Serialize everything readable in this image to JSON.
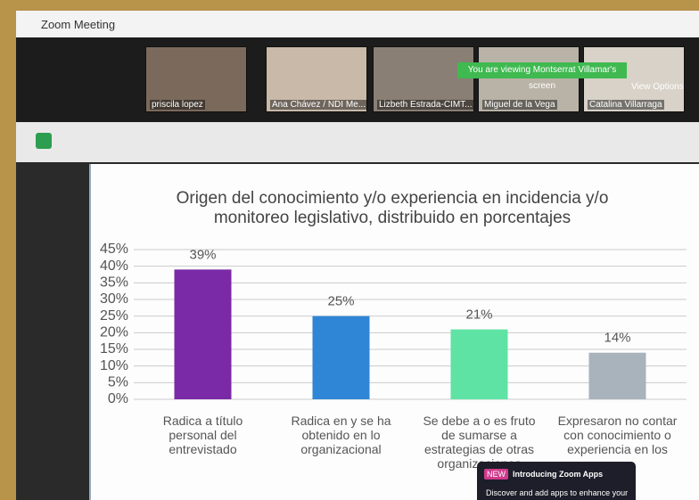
{
  "window": {
    "title": "Zoom Meeting",
    "banner": "You are viewing Montserrat Villamar's screen",
    "view_options": "View Options",
    "participants": [
      "priscila lopez",
      "Ana Chávez / NDI Me...",
      "Lizbeth Estrada-CIMT...",
      "Miguel de la Vega",
      "Catalina Villarraga"
    ],
    "popup": {
      "badge": "NEW",
      "title": "Introducing Zoom Apps",
      "text": "Discover and add apps to enhance your"
    }
  },
  "chart_data": {
    "type": "bar",
    "title": "Origen del conocimiento y/o experiencia en incidencia y/o monitoreo legislativo, distribuido en porcentajes",
    "categories": [
      "Radica a título personal del entrevistado",
      "Radica en y se ha obtenido en lo organizacional",
      "Se debe a o es fruto de sumarse a estrategias de otras organizaciones",
      "Expresaron no contar con conocimiento o experiencia en los"
    ],
    "values": [
      39,
      25,
      21,
      14
    ],
    "value_labels": [
      "39%",
      "25%",
      "21%",
      "14%"
    ],
    "colors": [
      "#7a2aa6",
      "#2f86d6",
      "#5fe3a4",
      "#a8b3bc"
    ],
    "ylim": [
      0,
      45
    ],
    "yticks": [
      {
        "value": 0,
        "label": "0%"
      },
      {
        "value": 5,
        "label": "5%"
      },
      {
        "value": 10,
        "label": "10%"
      },
      {
        "value": 15,
        "label": "15%"
      },
      {
        "value": 20,
        "label": "20%"
      },
      {
        "value": 25,
        "label": "25%"
      },
      {
        "value": 30,
        "label": "30%"
      },
      {
        "value": 35,
        "label": "35%"
      },
      {
        "value": 40,
        "label": "40%"
      },
      {
        "value": 45,
        "label": "45%"
      }
    ],
    "grid": true
  }
}
